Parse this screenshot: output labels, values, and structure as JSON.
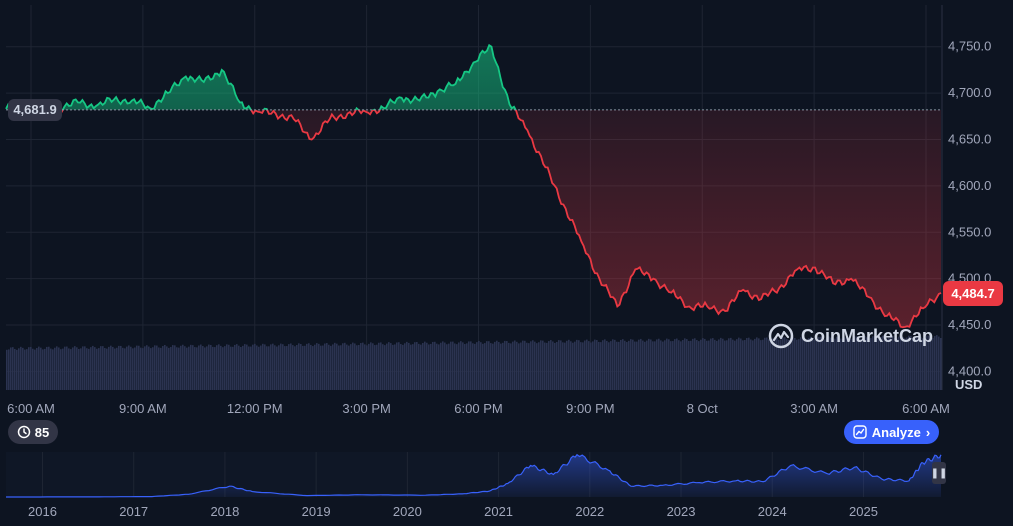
{
  "chart_data": [
    {
      "type": "area",
      "title": "",
      "xlabel": "",
      "ylabel": "",
      "unit": "USD",
      "x_tick_labels": [
        "6:00 AM",
        "9:00 AM",
        "12:00 PM",
        "3:00 PM",
        "6:00 PM",
        "9:00 PM",
        "8 Oct",
        "3:00 AM",
        "6:00 AM"
      ],
      "y_tick_labels": [
        "4,750.0",
        "4,700.0",
        "4,650.0",
        "4,600.0",
        "4,550.0",
        "4,500.0",
        "4,450.0",
        "4,400.0"
      ],
      "ylim": [
        4380,
        4795
      ],
      "reference_price": 4681.9,
      "reference_label": "4,681.9",
      "current_price": 4484.7,
      "current_label": "4,484.7",
      "above_reference_color": "#16c784",
      "below_reference_color": "#ea3943",
      "x_range_hours": [
        0,
        26
      ],
      "series": [
        {
          "x": [
            0,
            0.5,
            1,
            1.5,
            2,
            2.5,
            3,
            3.5,
            4,
            4.5,
            5,
            5.5,
            6,
            6.5,
            7,
            7.5,
            8,
            8.5,
            9,
            9.5,
            10,
            10.5,
            11,
            11.5,
            12,
            12.5,
            13,
            13.5,
            14,
            14.5,
            15,
            15.5,
            16,
            16.5,
            17,
            17.5,
            18,
            18.5,
            19,
            19.5,
            20,
            20.5,
            21,
            21.5,
            22,
            22.5,
            23,
            23.5,
            24,
            24.5,
            25,
            25.5,
            26
          ],
          "values": [
            4683,
            4690,
            4681,
            4685,
            4690,
            4686,
            4693,
            4692,
            4684,
            4700,
            4718,
            4712,
            4725,
            4690,
            4680,
            4678,
            4672,
            4650,
            4672,
            4678,
            4680,
            4684,
            4695,
            4692,
            4702,
            4710,
            4733,
            4750,
            4688,
            4660,
            4620,
            4580,
            4540,
            4500,
            4470,
            4510,
            4500,
            4485,
            4470,
            4470,
            4465,
            4488,
            4478,
            4490,
            4510,
            4512,
            4495,
            4500,
            4480,
            4460,
            4448,
            4468,
            4484.7
          ]
        }
      ]
    },
    {
      "type": "area",
      "title": "",
      "x_tick_labels": [
        "2016",
        "2017",
        "2018",
        "2019",
        "2020",
        "2021",
        "2022",
        "2023",
        "2024",
        "2025"
      ],
      "x_range_years": [
        2015.6,
        2025.85
      ],
      "ylim": [
        0,
        5000
      ],
      "series": [
        {
          "x": [
            2015.6,
            2016.5,
            2017.2,
            2017.6,
            2018.05,
            2018.3,
            2018.9,
            2019.5,
            2020.2,
            2020.6,
            2020.9,
            2021.1,
            2021.35,
            2021.6,
            2021.86,
            2022.2,
            2022.45,
            2022.8,
            2023.2,
            2023.6,
            2023.9,
            2024.2,
            2024.6,
            2024.9,
            2025.2,
            2025.5,
            2025.65,
            2025.85
          ],
          "values": [
            1,
            10,
            50,
            300,
            1200,
            600,
            150,
            250,
            200,
            350,
            650,
            1500,
            3500,
            2500,
            4700,
            3000,
            1200,
            1300,
            1600,
            1800,
            1700,
            3500,
            2600,
            3300,
            2000,
            1800,
            3800,
            4684
          ]
        }
      ]
    }
  ],
  "ui": {
    "history_count": "85",
    "analyze_label": "Analyze",
    "watermark_text": "CoinMarketCap",
    "currency_label": "USD",
    "pause_icon": "pause-icon"
  }
}
